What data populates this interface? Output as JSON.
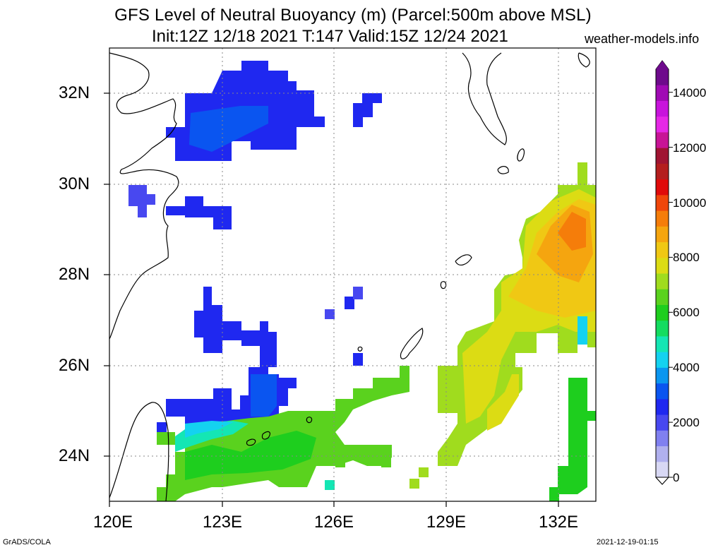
{
  "header": {
    "title_line1": "GFS Level of Neutral Buoyancy (m) (Parcel:500m above MSL)",
    "title_line2": "Init:12Z 12/18 2021 T:147 Valid:15Z 12/24 2021",
    "site": "weather-models.info"
  },
  "map": {
    "lat_labels": [
      "32N",
      "30N",
      "28N",
      "26N",
      "24N"
    ],
    "lon_labels": [
      "120E",
      "123E",
      "126E",
      "129E",
      "132E"
    ],
    "lon_range": [
      120,
      133
    ],
    "lat_range": [
      23,
      33
    ]
  },
  "colorbar": {
    "labels": [
      "14000",
      "12000",
      "10000",
      "8000",
      "6000",
      "4000",
      "2000",
      "0"
    ],
    "colors": [
      "#d8d8f4",
      "#b0b0ee",
      "#8080f0",
      "#4848f0",
      "#1f28f0",
      "#0a55f0",
      "#0a96f0",
      "#14d2f0",
      "#14e6b4",
      "#14dc60",
      "#1ece1e",
      "#5ad21e",
      "#a0dc1e",
      "#dcdc14",
      "#f0c814",
      "#f5a50f",
      "#f57d0a",
      "#f0460a",
      "#e00a0a",
      "#b41e1e",
      "#a01432",
      "#c81496",
      "#e628e6",
      "#c814dc",
      "#a00ab4",
      "#6e0a8c"
    ]
  },
  "footer": {
    "left": "GrADS/COLA",
    "right": "2021-12-19-01:15"
  }
}
